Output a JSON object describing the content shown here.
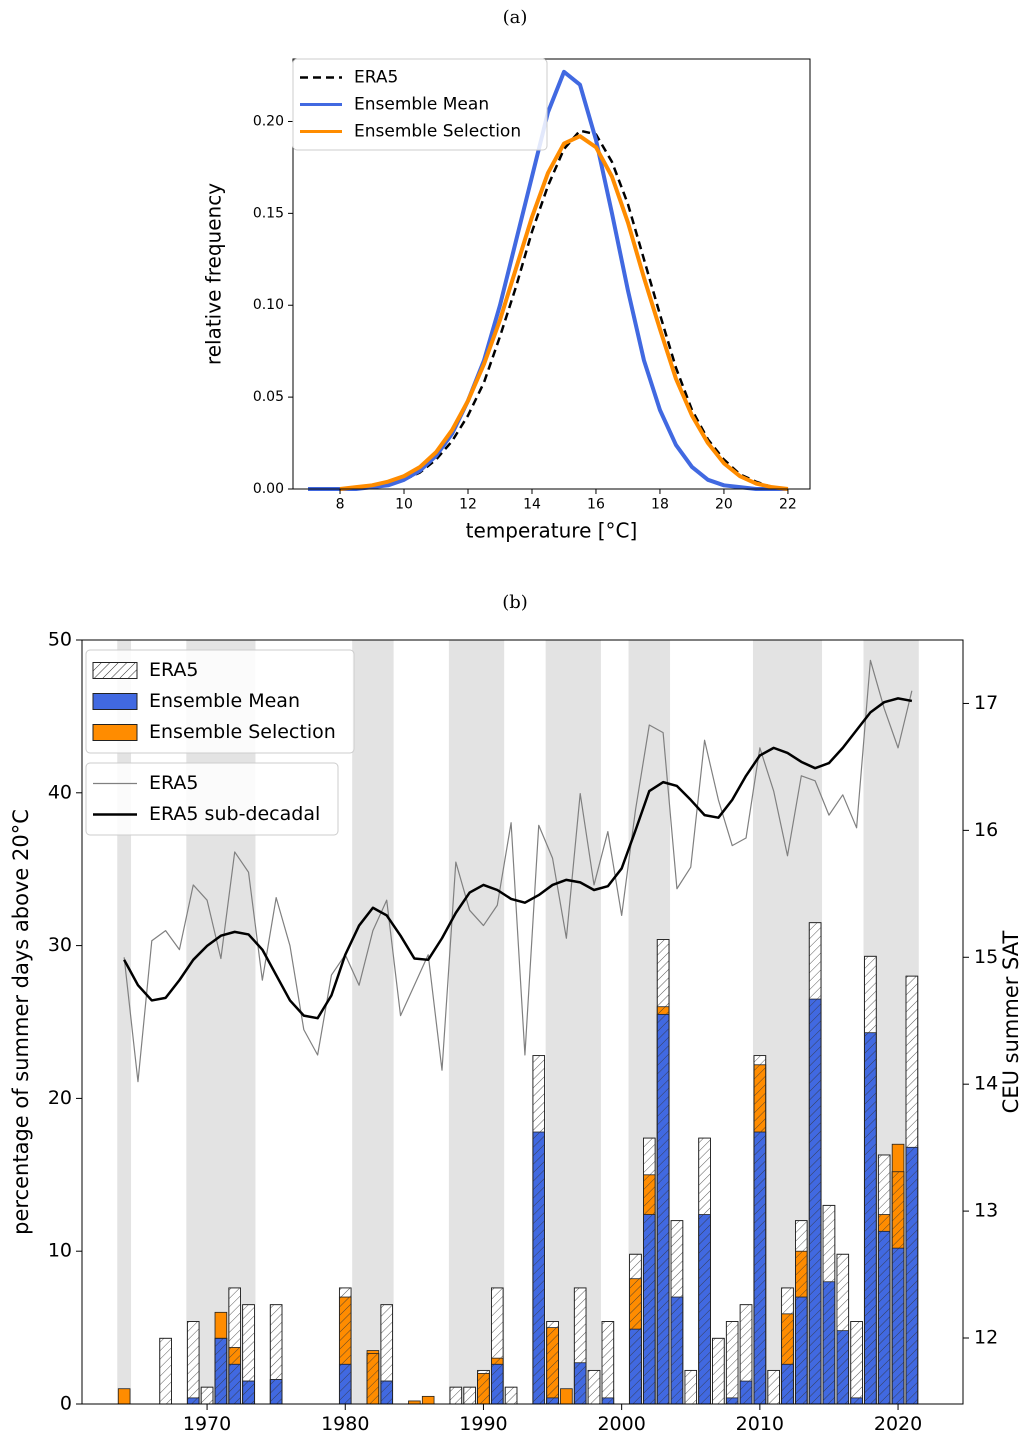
{
  "chart_data": [
    {
      "type": "line",
      "title": "(a)",
      "xlabel": "temperature [°C]",
      "ylabel": "relative frequency",
      "x": [
        7,
        7.5,
        8,
        8.5,
        9,
        9.5,
        10,
        10.5,
        11,
        11.5,
        12,
        12.5,
        13,
        13.5,
        14,
        14.5,
        15,
        15.5,
        16,
        16.5,
        17,
        17.5,
        18,
        18.5,
        19,
        19.5,
        20,
        20.5,
        21,
        21.5,
        22
      ],
      "series": [
        {
          "name": "ERA5",
          "color": "#000000",
          "linestyle": "dashed",
          "linewidth": 2.5,
          "values": [
            null,
            null,
            0,
            0.001,
            0.001,
            0.003,
            0.005,
            0.009,
            0.016,
            0.026,
            0.04,
            0.058,
            0.083,
            0.11,
            0.14,
            0.165,
            0.185,
            0.195,
            0.193,
            0.178,
            0.155,
            0.125,
            0.095,
            0.066,
            0.043,
            0.027,
            0.016,
            0.008,
            0.004,
            0.001,
            0
          ]
        },
        {
          "name": "Ensemble Mean",
          "color": "#4169e1",
          "linestyle": "solid",
          "linewidth": 4,
          "values": [
            0,
            0,
            0,
            0,
            0.001,
            0.002,
            0.005,
            0.01,
            0.018,
            0.03,
            0.048,
            0.07,
            0.1,
            0.135,
            0.17,
            0.205,
            0.227,
            0.22,
            0.19,
            0.15,
            0.108,
            0.07,
            0.043,
            0.024,
            0.012,
            0.005,
            0.002,
            0.001,
            0,
            0,
            0
          ]
        },
        {
          "name": "Ensemble Selection",
          "color": "#ff8c00",
          "linestyle": "solid",
          "linewidth": 4,
          "values": [
            null,
            null,
            0,
            0.001,
            0.002,
            0.004,
            0.007,
            0.012,
            0.02,
            0.032,
            0.048,
            0.068,
            0.092,
            0.12,
            0.148,
            0.172,
            0.188,
            0.192,
            0.186,
            0.17,
            0.145,
            0.115,
            0.087,
            0.06,
            0.04,
            0.025,
            0.014,
            0.007,
            0.003,
            0.001,
            0
          ]
        }
      ],
      "xlim": [
        6.53,
        22.69
      ],
      "xticks": [
        8,
        10,
        12,
        14,
        16,
        18,
        20,
        22
      ],
      "ylim": [
        0,
        0.234
      ],
      "yticks": [
        {
          "value": 0,
          "label": "0.00"
        },
        {
          "value": 0.05,
          "label": "0.05"
        },
        {
          "value": 0.1,
          "label": "0.10"
        },
        {
          "value": 0.15,
          "label": "0.15"
        },
        {
          "value": 0.2,
          "label": "0.20"
        }
      ],
      "legend": "upper left"
    },
    {
      "type": "bar",
      "title": "(b)",
      "ylabel": "percentage of summer days above 20°C",
      "y2label": "CEU summer SAT",
      "x": [
        1964,
        1965,
        1966,
        1967,
        1968,
        1969,
        1970,
        1971,
        1972,
        1973,
        1974,
        1975,
        1976,
        1977,
        1978,
        1979,
        1980,
        1981,
        1982,
        1983,
        1984,
        1985,
        1986,
        1987,
        1988,
        1989,
        1990,
        1991,
        1992,
        1993,
        1994,
        1995,
        1996,
        1997,
        1998,
        1999,
        2000,
        2001,
        2002,
        2003,
        2004,
        2005,
        2006,
        2007,
        2008,
        2009,
        2010,
        2011,
        2012,
        2013,
        2014,
        2015,
        2016,
        2017,
        2018,
        2019,
        2020,
        2021
      ],
      "series": [
        {
          "name": "ERA5",
          "kind": "bar",
          "color": "#ffffff",
          "hatch": "///",
          "values": [
            0,
            0,
            0,
            4.3,
            0,
            5.4,
            1.1,
            4.3,
            7.6,
            6.5,
            0,
            6.5,
            0,
            0,
            0,
            0,
            7.6,
            0,
            3.3,
            6.5,
            0,
            0,
            0,
            0,
            1.1,
            1.1,
            2.2,
            7.6,
            1.1,
            0,
            22.8,
            5.4,
            0,
            7.6,
            2.2,
            5.4,
            0,
            9.8,
            17.4,
            30.4,
            12.0,
            2.2,
            17.4,
            4.3,
            5.4,
            6.5,
            22.8,
            2.2,
            7.6,
            12.0,
            31.5,
            13.0,
            9.8,
            5.4,
            29.3,
            16.3,
            15.2,
            28.0
          ]
        },
        {
          "name": "Ensemble Mean",
          "kind": "bar",
          "color": "#4169e1",
          "values": [
            0,
            0,
            0,
            0,
            0,
            0.4,
            0,
            4.3,
            2.6,
            1.5,
            0,
            1.6,
            0,
            0,
            0,
            0,
            2.6,
            0,
            0,
            1.5,
            0,
            0,
            0,
            0,
            0,
            0,
            0,
            2.6,
            0,
            0,
            17.8,
            0.4,
            0,
            2.7,
            0,
            0.4,
            0,
            4.9,
            12.4,
            25.5,
            7.0,
            0,
            12.4,
            0,
            0.4,
            1.5,
            17.8,
            0,
            2.6,
            7.0,
            26.5,
            8.0,
            4.8,
            0.4,
            24.3,
            11.3,
            10.2,
            16.8
          ]
        },
        {
          "name": "Ensemble Selection",
          "kind": "bar",
          "color": "#ff8c00",
          "values": [
            1.0,
            0,
            0,
            0,
            0,
            0,
            0,
            6.0,
            3.7,
            1.5,
            0,
            1.6,
            0,
            0,
            0,
            0,
            7.0,
            0,
            3.5,
            1.5,
            0,
            0.2,
            0.5,
            0,
            0,
            0,
            2.0,
            3.0,
            0,
            0,
            0,
            5.0,
            1.0,
            0,
            0,
            0,
            0,
            8.2,
            15.0,
            26.0,
            0,
            0,
            0,
            0,
            0,
            0,
            22.2,
            0,
            5.9,
            10.0,
            0,
            0,
            0,
            0,
            0,
            12.4,
            17.0,
            0
          ]
        },
        {
          "name": "ERA5",
          "kind": "line",
          "axis": "y2",
          "color": "#808080",
          "linewidth": 1.2,
          "values": [
            15.0,
            14.02,
            15.13,
            15.21,
            15.06,
            15.57,
            15.45,
            14.99,
            15.83,
            15.67,
            14.82,
            15.47,
            15.09,
            14.43,
            14.23,
            14.86,
            15.02,
            14.78,
            15.21,
            15.45,
            14.54,
            14.78,
            15.02,
            14.11,
            15.75,
            15.37,
            15.25,
            15.41,
            16.06,
            14.23,
            16.04,
            15.78,
            15.15,
            16.29,
            15.57,
            15.99,
            15.33,
            16.16,
            16.83,
            16.77,
            15.54,
            15.71,
            16.71,
            16.24,
            15.88,
            15.94,
            16.65,
            16.31,
            15.8,
            16.43,
            16.39,
            16.12,
            16.28,
            16.02,
            17.34,
            16.96,
            16.65,
            17.1
          ]
        },
        {
          "name": "ERA5 sub-decadal",
          "kind": "line",
          "axis": "y2",
          "color": "#000000",
          "linewidth": 2.5,
          "values": [
            14.98,
            14.78,
            14.66,
            14.68,
            14.82,
            14.98,
            15.09,
            15.17,
            15.2,
            15.18,
            15.06,
            14.86,
            14.66,
            14.54,
            14.52,
            14.7,
            15.02,
            15.25,
            15.39,
            15.33,
            15.17,
            14.99,
            14.98,
            15.15,
            15.35,
            15.51,
            15.57,
            15.53,
            15.46,
            15.43,
            15.49,
            15.57,
            15.61,
            15.59,
            15.53,
            15.56,
            15.7,
            16.0,
            16.31,
            16.38,
            16.35,
            16.24,
            16.12,
            16.1,
            16.24,
            16.43,
            16.59,
            16.65,
            16.61,
            16.54,
            16.49,
            16.53,
            16.65,
            16.79,
            16.93,
            17.01,
            17.04,
            17.02
          ]
        }
      ],
      "shaded_spans": [
        [
          1963.5,
          1964.5
        ],
        [
          1968.5,
          1973.5
        ],
        [
          1980.5,
          1983.5
        ],
        [
          1987.5,
          1991.5
        ],
        [
          1994.5,
          1998.5
        ],
        [
          2000.5,
          2003.5
        ],
        [
          2009.5,
          2014.5
        ],
        [
          2017.5,
          2021.5
        ]
      ],
      "shade_color": "#e3e3e3",
      "xlim": [
        1960.95,
        2024.7
      ],
      "xticks": [
        1970,
        1980,
        1990,
        2000,
        2010,
        2020
      ],
      "ylim": [
        0,
        50
      ],
      "yticks": [
        0,
        10,
        20,
        30,
        40,
        50
      ],
      "y2lim": [
        11.48,
        17.5
      ],
      "y2ticks": [
        12,
        13,
        14,
        15,
        16,
        17
      ],
      "legend": "upper left"
    }
  ]
}
